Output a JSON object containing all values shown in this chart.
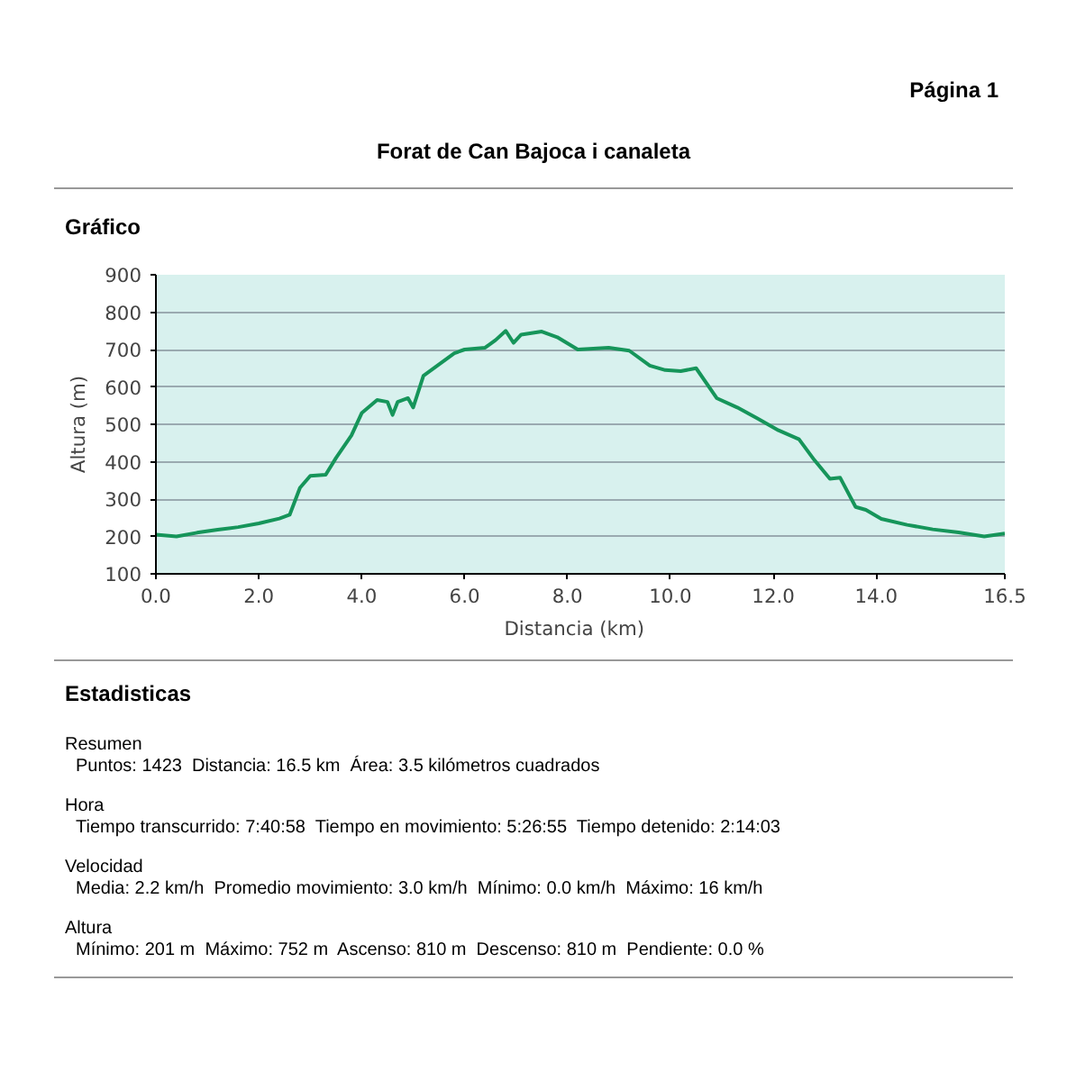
{
  "chart_data": {
    "type": "line",
    "title": "Forat de Can Bajoca i canaleta",
    "subtitle": "Gráfico",
    "xlabel": "Distancia   (km)",
    "ylabel": "Altura (m)",
    "annotations": [
      "Página 1",
      "Estadisticas",
      "Resumen",
      "Puntos: 1423  Distancia: 16.5 km  Área: 3.5 kilómetros cuadrados",
      "Hora",
      "Tiempo transcurrido: 7:40:58  Tiempo en movimiento: 5:26:55  Tiempo detenido: 2:14:03",
      "Velocidad",
      "Media: 2.2 km/h  Promedio movimiento: 3.0 km/h  Mínimo: 0.0 km/h  Máximo: 16 km/h",
      "Altura",
      "Mínimo: 201 m  Máximo: 752 m  Ascenso: 810 m  Descenso: 810 m  Pendiente: 0.0 %"
    ],
    "x": [
      0.0,
      0.4,
      0.8,
      1.2,
      1.6,
      2.0,
      2.4,
      2.6,
      2.8,
      3.0,
      3.3,
      3.5,
      3.8,
      4.0,
      4.3,
      4.5,
      4.6,
      4.7,
      4.9,
      5.0,
      5.2,
      5.5,
      5.8,
      6.0,
      6.4,
      6.6,
      6.8,
      6.95,
      7.1,
      7.5,
      7.8,
      8.2,
      8.8,
      9.2,
      9.6,
      9.9,
      10.2,
      10.5,
      10.9,
      11.3,
      11.7,
      12.1,
      12.5,
      12.8,
      13.1,
      13.3,
      13.6,
      13.8,
      14.1,
      14.6,
      15.1,
      15.6,
      16.1,
      16.5
    ],
    "series": [
      {
        "color": "#16955a",
        "values": [
          205,
          200,
          210,
          218,
          225,
          235,
          248,
          258,
          330,
          362,
          365,
          410,
          470,
          530,
          565,
          560,
          525,
          560,
          570,
          545,
          630,
          660,
          690,
          700,
          705,
          725,
          750,
          718,
          740,
          748,
          733,
          700,
          705,
          697,
          657,
          645,
          642,
          650,
          570,
          545,
          515,
          484,
          460,
          404,
          354,
          357,
          279,
          271,
          247,
          231,
          219,
          211,
          200,
          208
        ]
      }
    ],
    "xlim": [
      0,
      16.5
    ],
    "ylim": [
      100,
      900
    ],
    "xticks": [
      {
        "value": 0,
        "label": "0.0"
      },
      {
        "value": 2,
        "label": "2.0"
      },
      {
        "value": 4,
        "label": "4.0"
      },
      {
        "value": 6,
        "label": "6.0"
      },
      {
        "value": 8,
        "label": "8.0"
      },
      {
        "value": 10,
        "label": "10.0"
      },
      {
        "value": 12,
        "label": "12.0"
      },
      {
        "value": 14,
        "label": "14.0"
      },
      {
        "value": 16.5,
        "label": "16.5"
      }
    ],
    "yticks": [
      100,
      200,
      300,
      400,
      500,
      600,
      700,
      800,
      900
    ],
    "grid": "y",
    "marker": "none",
    "line_style": "solid"
  }
}
